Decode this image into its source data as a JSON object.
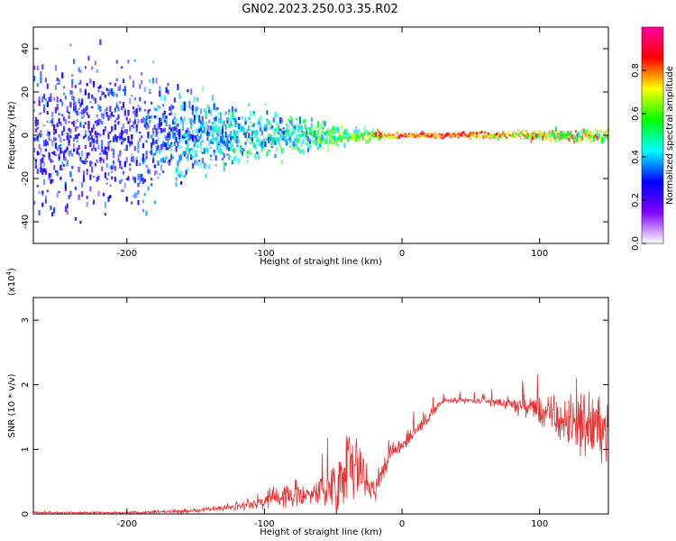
{
  "title": "GN02.2023.250.03.35.R02",
  "chart_data": [
    {
      "type": "heatmap",
      "xlabel": "Height of straight line (km)",
      "ylabel": "Frequency (Hz)",
      "xlim": [
        -268,
        150
      ],
      "ylim": [
        -50,
        50
      ],
      "xticks": [
        -200,
        -100,
        0,
        100
      ],
      "yticks": [
        -40,
        -20,
        0,
        20,
        40
      ],
      "colorbar": {
        "label": "Normalized spectral amplitude",
        "range": [
          0.0,
          1.0
        ],
        "ticks": [
          "0.0",
          "0.2",
          "0.4",
          "0.6",
          "0.8"
        ],
        "colors": [
          "#ffffff",
          "#8000ff",
          "#0000ff",
          "#00ffff",
          "#00ff00",
          "#ffff00",
          "#ff0000",
          "#ff00a0"
        ]
      },
      "bands": [
        {
          "x": -260,
          "spread": 48,
          "level": 0.3
        },
        {
          "x": -200,
          "spread": 48,
          "level": 0.3
        },
        {
          "x": -160,
          "spread": 28,
          "level": 0.4
        },
        {
          "x": -120,
          "spread": 20,
          "level": 0.45
        },
        {
          "x": -80,
          "spread": 12,
          "level": 0.5
        },
        {
          "x": -50,
          "spread": 8,
          "level": 0.6
        },
        {
          "x": -35,
          "spread": 5,
          "level": 0.6
        },
        {
          "x": 0,
          "spread": 1.5,
          "level": 0.9
        },
        {
          "x": 60,
          "spread": 2.5,
          "level": 0.8
        },
        {
          "x": 150,
          "spread": 4,
          "level": 0.7
        }
      ]
    },
    {
      "type": "line",
      "xlabel": "Height of straight line (km)",
      "ylabel": "SNR (10 * v/v)",
      "multiplier": "(x10",
      "multiplier_exp": "4",
      "multiplier_close": ")",
      "xlim": [
        -268,
        150
      ],
      "ylim": [
        0,
        3.35
      ],
      "xticks": [
        -200,
        -100,
        0,
        100
      ],
      "yticks": [
        0,
        1,
        2,
        3
      ],
      "color": "#e83030",
      "envelope": [
        {
          "x": -268,
          "mean": 0.02,
          "spread": 0.02
        },
        {
          "x": -200,
          "mean": 0.02,
          "spread": 0.02
        },
        {
          "x": -150,
          "mean": 0.05,
          "spread": 0.05
        },
        {
          "x": -120,
          "mean": 0.12,
          "spread": 0.1
        },
        {
          "x": -90,
          "mean": 0.25,
          "spread": 0.25
        },
        {
          "x": -60,
          "mean": 0.35,
          "spread": 0.35
        },
        {
          "x": -45,
          "mean": 0.5,
          "spread": 0.7
        },
        {
          "x": -38,
          "mean": 1.0,
          "spread": 0.9
        },
        {
          "x": -30,
          "mean": 0.6,
          "spread": 0.6
        },
        {
          "x": -20,
          "mean": 0.4,
          "spread": 0.3
        },
        {
          "x": -10,
          "mean": 0.9,
          "spread": 0.3
        },
        {
          "x": 10,
          "mean": 1.3,
          "spread": 0.2
        },
        {
          "x": 30,
          "mean": 1.75,
          "spread": 0.07
        },
        {
          "x": 60,
          "mean": 1.75,
          "spread": 0.07
        },
        {
          "x": 80,
          "mean": 1.7,
          "spread": 0.15
        },
        {
          "x": 100,
          "mean": 1.6,
          "spread": 0.35
        },
        {
          "x": 120,
          "mean": 1.4,
          "spread": 0.6
        },
        {
          "x": 135,
          "mean": 1.4,
          "spread": 0.8
        },
        {
          "x": 150,
          "mean": 1.3,
          "spread": 0.7
        }
      ]
    }
  ]
}
